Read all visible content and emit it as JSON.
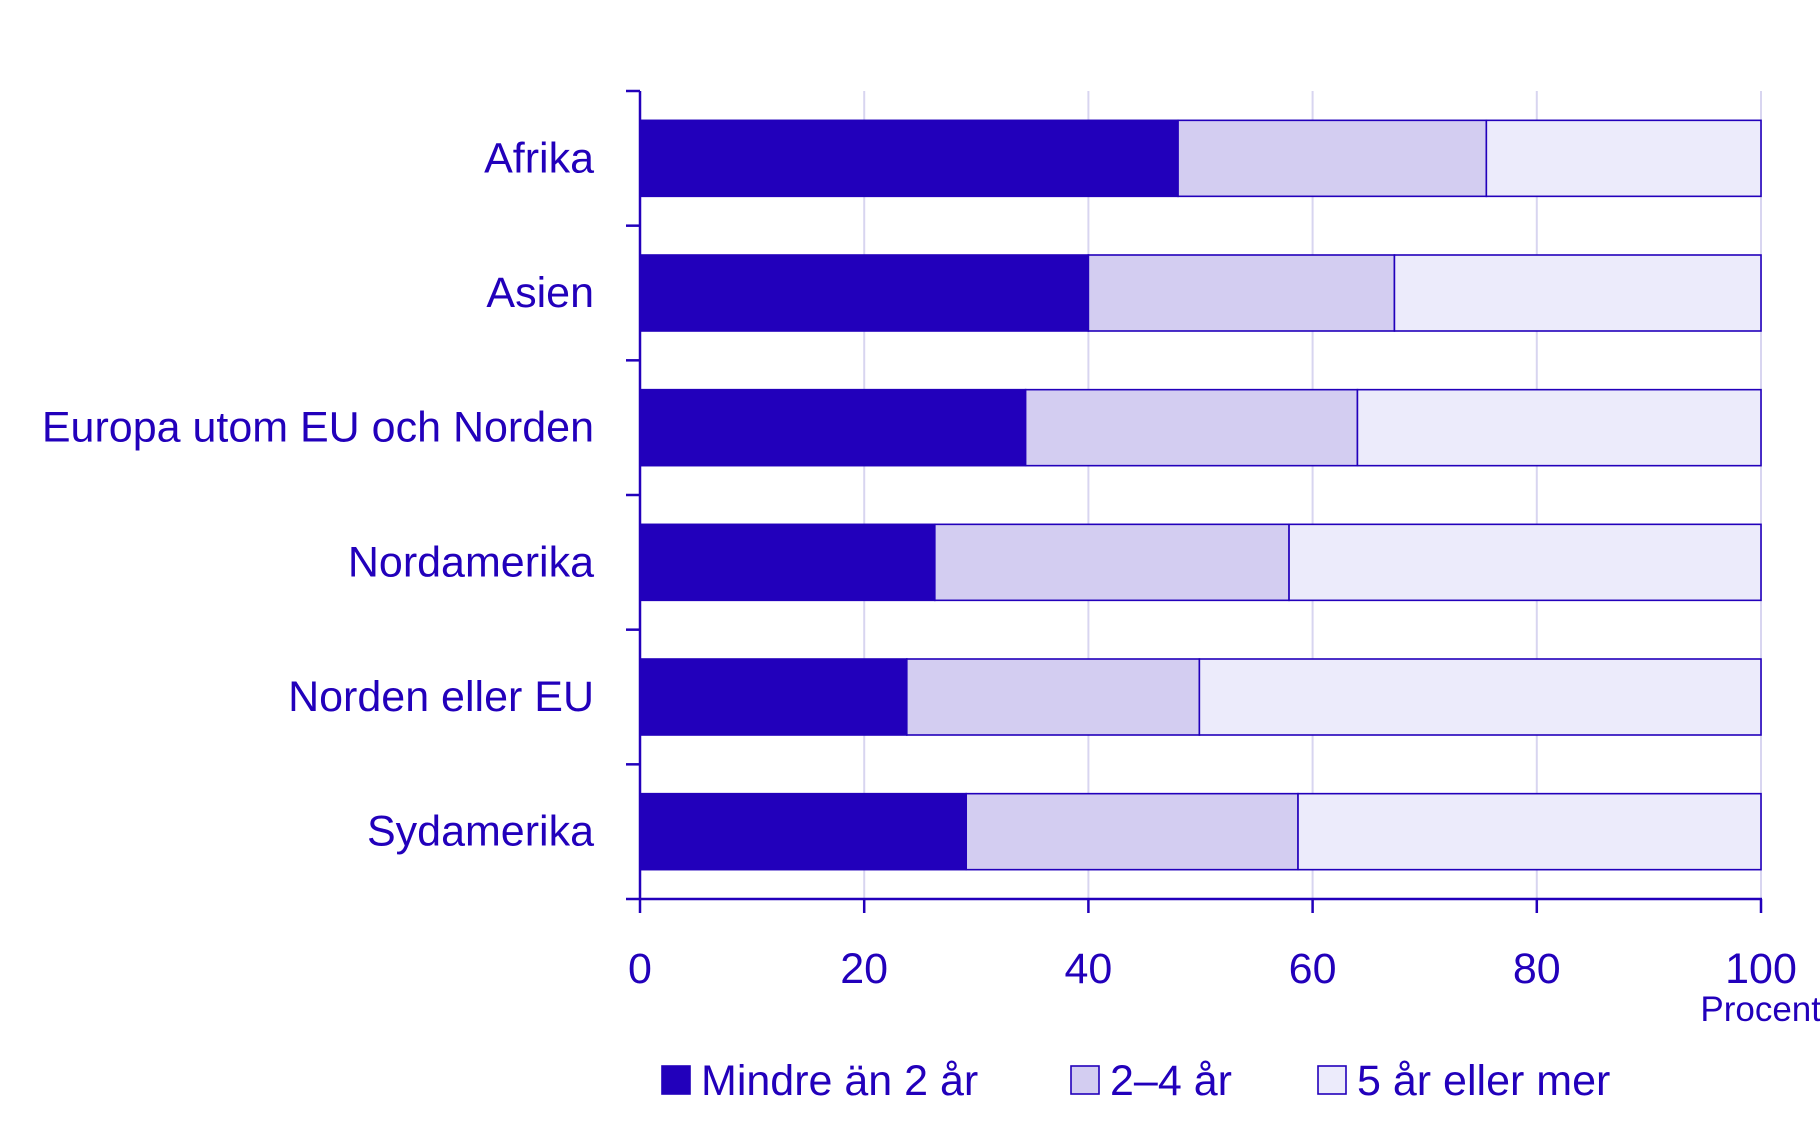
{
  "chart_data": {
    "type": "bar",
    "orientation": "horizontal",
    "stacked": true,
    "categories": [
      "Afrika",
      "Asien",
      "Europa utom EU och Norden",
      "Nordamerika",
      "Norden eller EU",
      "Sydamerika"
    ],
    "series": [
      {
        "name": "Mindre än 2 år",
        "color": "#2200bb",
        "values": [
          48,
          40,
          34.4,
          26.3,
          23.8,
          29.1
        ]
      },
      {
        "name": "2–4 år",
        "color": "#d3cdf1",
        "values": [
          27.5,
          27.3,
          29.6,
          31.6,
          26.1,
          29.6
        ]
      },
      {
        "name": "5 år eller mer",
        "color": "#ecebfb",
        "values": [
          24.5,
          32.7,
          36,
          42.1,
          50.1,
          41.3
        ]
      }
    ],
    "xlim": [
      0,
      100
    ],
    "xticks": [
      "0",
      "20",
      "40",
      "60",
      "80",
      "100"
    ],
    "xlabel": "Procent",
    "ylabel": "",
    "title": "",
    "grid": "vertical",
    "legend_position": "bottom",
    "colors": {
      "text": "#2200bb",
      "axis": "#2200bb",
      "grid": "#d8d5f0",
      "bar_outline": "#2200bb"
    }
  }
}
